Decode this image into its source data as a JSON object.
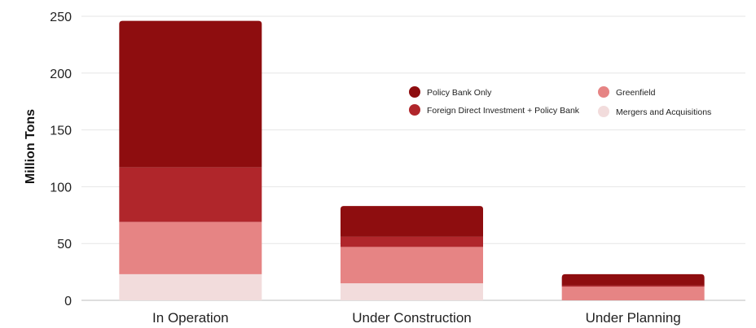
{
  "chart_data": {
    "type": "bar",
    "stacked": true,
    "categories": [
      "In Operation",
      "Under Construction",
      "Under Planning"
    ],
    "series": [
      {
        "name": "Mergers and Acquisitions",
        "color": "#f2dcdc",
        "values": [
          23,
          15,
          0
        ]
      },
      {
        "name": "Greenfield",
        "color": "#e68484",
        "values": [
          46,
          32,
          12
        ]
      },
      {
        "name": "Foreign Direct Investment + Policy Bank",
        "color": "#b0262b",
        "values": [
          48,
          9,
          1
        ]
      },
      {
        "name": "Policy Bank Only",
        "color": "#8e0d0f",
        "values": [
          129,
          27,
          10
        ]
      }
    ],
    "legend_order": [
      "Policy Bank Only",
      "Foreign Direct Investment + Policy Bank",
      "Greenfield",
      "Mergers and Acquisitions"
    ],
    "xlabel": "",
    "ylabel": "Million Tons",
    "ylim": [
      0,
      250
    ],
    "yticks": [
      0,
      50,
      100,
      150,
      200,
      250
    ],
    "grid": true,
    "legend_position": "top-right"
  }
}
